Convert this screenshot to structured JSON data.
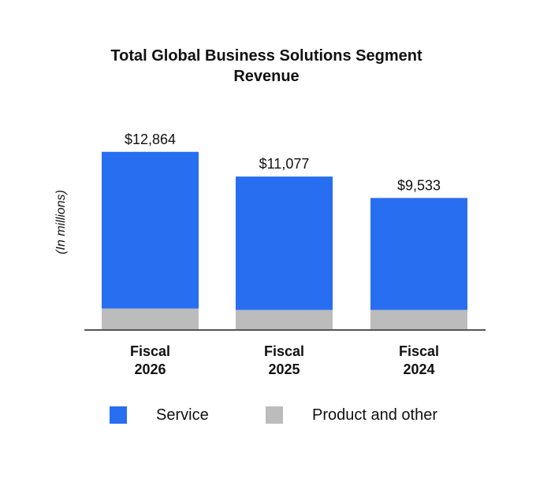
{
  "chart_data": {
    "type": "bar",
    "stacked": true,
    "title": "Total Global Business Solutions Segment Revenue",
    "ylabel": "(In millions)",
    "xlabel": "",
    "categories": [
      "Fiscal\n2026",
      "Fiscal\n2025",
      "Fiscal\n2024"
    ],
    "series": [
      {
        "name": "Product and other",
        "values": [
          1550,
          1450,
          1450
        ],
        "color": "#bcbcbc"
      },
      {
        "name": "Service",
        "values": [
          11314,
          9627,
          8083
        ],
        "color": "#276ef1"
      }
    ],
    "totals": [
      12864,
      11077,
      9533
    ],
    "total_labels": [
      "$12,864",
      "$11,077",
      "$9,533"
    ],
    "ylim": [
      0,
      14500
    ],
    "grid": false,
    "legend": "bottom"
  }
}
